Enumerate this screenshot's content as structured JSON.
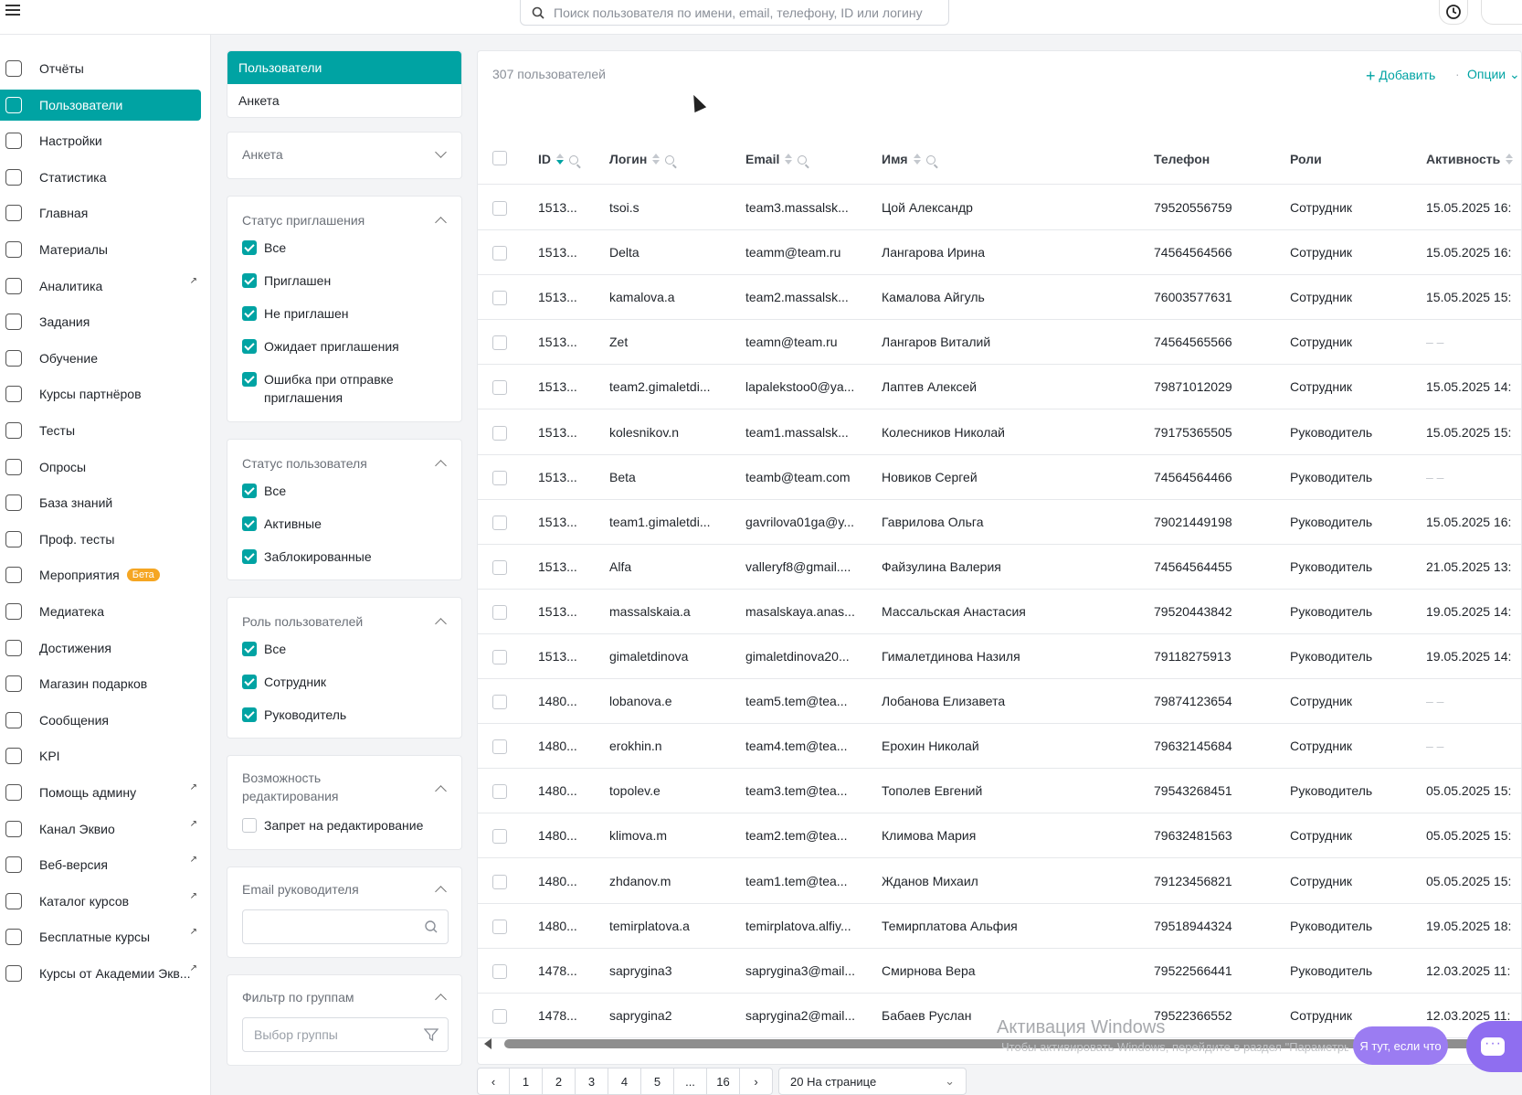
{
  "search": {
    "placeholder": "Поиск пользователя по имени, email, телефону, ID или логину"
  },
  "sidebar": {
    "items": [
      {
        "label": "Отчёты",
        "icon": "report-icon",
        "external": false
      },
      {
        "label": "Пользователи",
        "icon": "users-icon",
        "active": true,
        "external": false
      },
      {
        "label": "Настройки",
        "icon": "gear-icon",
        "external": false
      },
      {
        "label": "Статистика",
        "icon": "stats-icon",
        "external": false
      },
      {
        "label": "Главная",
        "icon": "home-icon",
        "external": false
      },
      {
        "label": "Материалы",
        "icon": "materials-icon",
        "external": false
      },
      {
        "label": "Аналитика",
        "icon": "analytics-icon",
        "external": true
      },
      {
        "label": "Задания",
        "icon": "tasks-icon",
        "external": false
      },
      {
        "label": "Обучение",
        "icon": "learning-icon",
        "external": false
      },
      {
        "label": "Курсы партнёров",
        "icon": "graduation-cap-icon",
        "external": false
      },
      {
        "label": "Тесты",
        "icon": "tests-icon",
        "external": false
      },
      {
        "label": "Опросы",
        "icon": "polls-icon",
        "external": false
      },
      {
        "label": "База знаний",
        "icon": "info-icon",
        "external": false
      },
      {
        "label": "Проф. тесты",
        "icon": "user-check-icon",
        "external": false
      },
      {
        "label": "Мероприятия",
        "icon": "calendar-icon",
        "external": false,
        "badge": "Бета"
      },
      {
        "label": "Медиатека",
        "icon": "play-icon",
        "external": false
      },
      {
        "label": "Достижения",
        "icon": "trophy-icon",
        "external": false
      },
      {
        "label": "Магазин подарков",
        "icon": "gift-icon",
        "external": false
      },
      {
        "label": "Сообщения",
        "icon": "chat-icon",
        "external": false
      },
      {
        "label": "KPI",
        "icon": "trend-icon",
        "external": false
      },
      {
        "label": "Помощь админу",
        "icon": "star-icon",
        "external": true
      },
      {
        "label": "Канал Эквио",
        "icon": "send-icon",
        "external": true
      },
      {
        "label": "Веб-версия",
        "icon": "monitor-icon",
        "external": true
      },
      {
        "label": "Каталог курсов",
        "icon": "external-link-icon",
        "external": true
      },
      {
        "label": "Бесплатные курсы",
        "icon": "external-link-icon",
        "external": true
      },
      {
        "label": "Курсы от Академии Экв...",
        "icon": "external-link-icon",
        "external": true
      }
    ]
  },
  "tabs": [
    {
      "label": "Пользователи",
      "active": true
    },
    {
      "label": "Анкета",
      "active": false
    }
  ],
  "filters": {
    "anketa": {
      "title": "Анкета"
    },
    "invite_status": {
      "title": "Статус приглашения",
      "options": [
        {
          "label": "Все",
          "checked": true
        },
        {
          "label": "Приглашен",
          "checked": true
        },
        {
          "label": "Не приглашен",
          "checked": true
        },
        {
          "label": "Ожидает приглашения",
          "checked": true
        },
        {
          "label": "Ошибка при отправке приглашения",
          "checked": true
        }
      ]
    },
    "user_status": {
      "title": "Статус пользователя",
      "options": [
        {
          "label": "Все",
          "checked": true
        },
        {
          "label": "Активные",
          "checked": true
        },
        {
          "label": "Заблокированные",
          "checked": true
        }
      ]
    },
    "user_role": {
      "title": "Роль пользователей",
      "options": [
        {
          "label": "Все",
          "checked": true
        },
        {
          "label": "Сотрудник",
          "checked": true
        },
        {
          "label": "Руководитель",
          "checked": true
        }
      ]
    },
    "edit": {
      "title": "Возможность редактирования",
      "options": [
        {
          "label": "Запрет на редактирование",
          "checked": false
        }
      ]
    },
    "manager_email": {
      "title": "Email руководителя",
      "value": ""
    },
    "groups": {
      "title": "Фильтр по группам",
      "placeholder": "Выбор группы"
    }
  },
  "table": {
    "count": "307 пользователей",
    "add_label": "Добавить",
    "options_label": "Опции",
    "columns": [
      "ID",
      "Логин",
      "Email",
      "Имя",
      "Телефон",
      "Роли",
      "Активность"
    ],
    "rows": [
      [
        "1513...",
        "tsoi.s",
        "team3.massalsk...",
        "Цой Александр",
        "79520556759",
        "Сотрудник",
        "15.05.2025 16:"
      ],
      [
        "1513...",
        "Delta",
        "teamm@team.ru",
        "Лангарова Ирина",
        "74564564566",
        "Сотрудник",
        "15.05.2025 16:"
      ],
      [
        "1513...",
        "kamalova.a",
        "team2.massalsk...",
        "Камалова Айгуль",
        "76003577631",
        "Сотрудник",
        "15.05.2025 15:"
      ],
      [
        "1513...",
        "Zet",
        "teamn@team.ru",
        "Лангаров Виталий",
        "74564565566",
        "Сотрудник",
        "– –"
      ],
      [
        "1513...",
        "team2.gimaletdi...",
        "lapalekstoo0@ya...",
        "Лаптев Алексей",
        "79871012029",
        "Сотрудник",
        "15.05.2025 14:"
      ],
      [
        "1513...",
        "kolesnikov.n",
        "team1.massalsk...",
        "Колесников Николай",
        "79175365505",
        "Руководитель",
        "15.05.2025 15:"
      ],
      [
        "1513...",
        "Beta",
        "teamb@team.com",
        "Новиков Сергей",
        "74564564466",
        "Руководитель",
        "– –"
      ],
      [
        "1513...",
        "team1.gimaletdi...",
        "gavrilova01ga@y...",
        "Гаврилова Ольга",
        "79021449198",
        "Руководитель",
        "15.05.2025 16:"
      ],
      [
        "1513...",
        "Alfa",
        "valleryf8@gmail....",
        "Файзулина Валерия",
        "74564564455",
        "Руководитель",
        "21.05.2025 13:"
      ],
      [
        "1513...",
        "massalskaia.a",
        "masalskaya.anas...",
        "Массальская Анастасия",
        "79520443842",
        "Руководитель",
        "19.05.2025 14:"
      ],
      [
        "1513...",
        "gimaletdinova",
        "gimaletdinova20...",
        "Гималетдинова Назиля",
        "79118275913",
        "Руководитель",
        "19.05.2025 14:"
      ],
      [
        "1480...",
        "lobanova.e",
        "team5.tem@tea...",
        "Лобанова Елизавета",
        "79874123654",
        "Сотрудник",
        "– –"
      ],
      [
        "1480...",
        "erokhin.n",
        "team4.tem@tea...",
        "Ерохин Николай",
        "79632145684",
        "Сотрудник",
        "– –"
      ],
      [
        "1480...",
        "topolev.e",
        "team3.tem@tea...",
        "Тополев Евгений",
        "79543268451",
        "Руководитель",
        "05.05.2025 15:"
      ],
      [
        "1480...",
        "klimova.m",
        "team2.tem@tea...",
        "Климова Мария",
        "79632481563",
        "Сотрудник",
        "05.05.2025 15:"
      ],
      [
        "1480...",
        "zhdanov.m",
        "team1.tem@tea...",
        "Жданов Михаил",
        "79123456821",
        "Сотрудник",
        "05.05.2025 15:"
      ],
      [
        "1480...",
        "temirplatova.a",
        "temirplatova.alfiy...",
        "Темирплатова Альфия",
        "79518944324",
        "Руководитель",
        "19.05.2025 18:"
      ],
      [
        "1478...",
        "saprygina3",
        "saprygina3@mail...",
        "Смирнова Вера",
        "79522566441",
        "Руководитель",
        "12.03.2025 11:"
      ],
      [
        "1478...",
        "saprygina2",
        "saprygina2@mail...",
        "Бабаев Руслан",
        "79522366552",
        "Сотрудник",
        "12.03.2025 11:"
      ]
    ]
  },
  "pagination": {
    "pages": [
      "1",
      "2",
      "3",
      "4",
      "5",
      "...",
      "16"
    ],
    "per_page": "20 На странице"
  },
  "overlay": {
    "watermark_title": "Активация Windows",
    "watermark_sub": "Чтобы активировать Windows, перейдите в раздел \"Параметры\".",
    "help_bubble": "Я тут, если что"
  },
  "colors": {
    "accent": "#00a3a3",
    "beta": "#f5a623",
    "chat": "#8f6ef0"
  }
}
